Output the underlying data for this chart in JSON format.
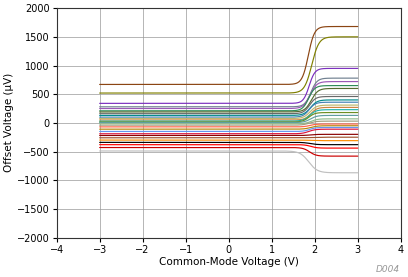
{
  "xlabel": "Common-Mode Voltage (V)",
  "ylabel": "Offset Voltage (μV)",
  "xlim": [
    -4,
    4
  ],
  "ylim": [
    -2000,
    2000
  ],
  "xticks": [
    -4,
    -3,
    -2,
    -1,
    0,
    1,
    2,
    3,
    4
  ],
  "yticks": [
    -2000,
    -1500,
    -1000,
    -500,
    0,
    500,
    1000,
    1500,
    2000
  ],
  "watermark": "D004",
  "bg": "#ffffff",
  "grid_color": "#999999",
  "curves": [
    {
      "flat": 670,
      "final": 1680,
      "trans": 1.85,
      "steep": 14,
      "color": "#8B4513"
    },
    {
      "flat": 520,
      "final": 1500,
      "trans": 1.93,
      "steep": 12,
      "color": "#808000"
    },
    {
      "flat": 340,
      "final": 950,
      "trans": 1.87,
      "steep": 15,
      "color": "#7B2FBE"
    },
    {
      "flat": 280,
      "final": 780,
      "trans": 1.91,
      "steep": 14,
      "color": "#708090"
    },
    {
      "flat": 250,
      "final": 720,
      "trans": 1.89,
      "steep": 13,
      "color": "#9B59B6"
    },
    {
      "flat": 210,
      "final": 650,
      "trans": 1.86,
      "steep": 14,
      "color": "#2E8B57"
    },
    {
      "flat": 190,
      "final": 600,
      "trans": 1.92,
      "steep": 13,
      "color": "#556B2F"
    },
    {
      "flat": 160,
      "final": 460,
      "trans": 1.88,
      "steep": 14,
      "color": "#696969"
    },
    {
      "flat": 130,
      "final": 400,
      "trans": 1.9,
      "steep": 13,
      "color": "#008B8B"
    },
    {
      "flat": 100,
      "final": 360,
      "trans": 1.87,
      "steep": 14,
      "color": "#4682B4"
    },
    {
      "flat": 75,
      "final": 310,
      "trans": 1.89,
      "steep": 13,
      "color": "#BDB76B"
    },
    {
      "flat": 50,
      "final": 270,
      "trans": 1.91,
      "steep": 14,
      "color": "#CD853F"
    },
    {
      "flat": 30,
      "final": 230,
      "trans": 1.88,
      "steep": 13,
      "color": "#20B2AA"
    },
    {
      "flat": 15,
      "final": 180,
      "trans": 1.86,
      "steep": 14,
      "color": "#6B8E23"
    },
    {
      "flat": 5,
      "final": 130,
      "trans": 1.9,
      "steep": 13,
      "color": "#5F9EA0"
    },
    {
      "flat": -15,
      "final": 70,
      "trans": 1.92,
      "steep": 14,
      "color": "#8FBC8F"
    },
    {
      "flat": -40,
      "final": 30,
      "trans": 1.87,
      "steep": 13,
      "color": "#A0A080"
    },
    {
      "flat": -70,
      "final": -20,
      "trans": 1.89,
      "steep": 14,
      "color": "#FF6347"
    },
    {
      "flat": -110,
      "final": -50,
      "trans": 1.91,
      "steep": 13,
      "color": "#B8860B"
    },
    {
      "flat": -150,
      "final": -80,
      "trans": 1.88,
      "steep": 14,
      "color": "#6495ED"
    },
    {
      "flat": -190,
      "final": -110,
      "trans": 1.86,
      "steep": 13,
      "color": "#DC143C"
    },
    {
      "flat": -220,
      "final": -200,
      "trans": 1.9,
      "steep": 14,
      "color": "#8B0000"
    },
    {
      "flat": -260,
      "final": -250,
      "trans": 1.92,
      "steep": 13,
      "color": "#A0522D"
    },
    {
      "flat": -300,
      "final": -310,
      "trans": 1.87,
      "steep": 14,
      "color": "#FF8C00"
    },
    {
      "flat": -340,
      "final": -380,
      "trans": 1.89,
      "steep": 13,
      "color": "#000000"
    },
    {
      "flat": -380,
      "final": -440,
      "trans": 1.91,
      "steep": 14,
      "color": "#FF0000"
    },
    {
      "flat": -430,
      "final": -580,
      "trans": 1.88,
      "steep": 13,
      "color": "#CC0000"
    },
    {
      "flat": -490,
      "final": -870,
      "trans": 1.86,
      "steep": 10,
      "color": "#C0C0C0"
    }
  ]
}
